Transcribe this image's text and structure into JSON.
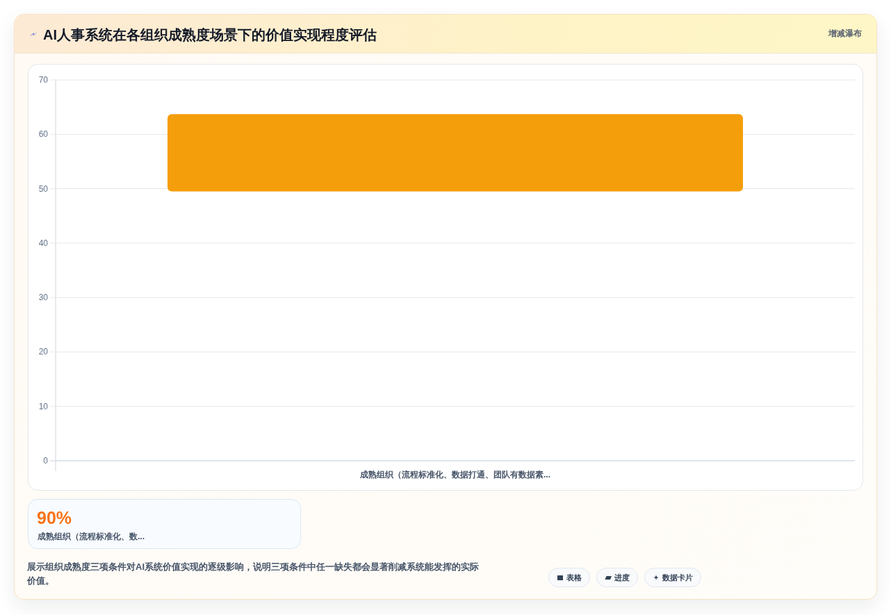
{
  "chart_data": [
    {
      "type": "bar",
      "title": "AI人事系统在各组织成熟度场景下的价值实现程度评估",
      "subtitle": "增减瀑布",
      "categories": [
        "成熟组织（流程标准化、数据打通、团队有数据素..."
      ],
      "values": [
        14.2
      ],
      "base": [
        49.5
      ],
      "color": "#f59e0b",
      "ylim": [
        0,
        70
      ],
      "yticks": [
        0,
        10,
        20,
        30,
        40,
        50,
        60,
        70
      ],
      "grid": "y",
      "annotations": [
        "展示组织成熟度三项条件对AI系统价值实现的逐级影响，说明三项条件中任一缺失都会显著削减系统能发挥的实际价值。",
        "表格",
        "进度",
        "数据卡片"
      ]
    },
    {
      "type": "other",
      "title": "90%",
      "annotations": [
        "成熟组织（流程标准化、数..."
      ]
    }
  ]
}
